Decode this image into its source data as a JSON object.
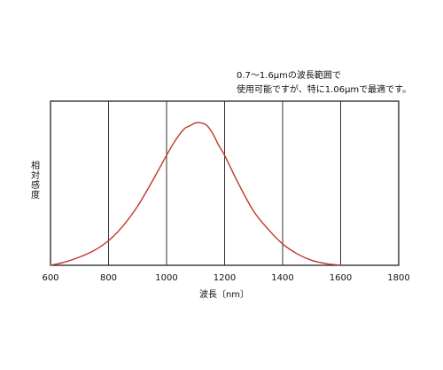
{
  "chart_data": {
    "type": "line",
    "title": "",
    "annotation": [
      "0.7〜1.6μmの波長範囲で",
      "使用可能ですが、特に1.06μmで最適です。"
    ],
    "xlabel": "波長〔nm〕",
    "ylabel": "相対感度",
    "xlim": [
      600,
      1800
    ],
    "ylim": [
      0,
      1
    ],
    "x_ticks": [
      600,
      800,
      1000,
      1200,
      1400,
      1600,
      1800
    ],
    "x_tick_labels": [
      "600",
      "800",
      "1000",
      "1200",
      "1400",
      "1600",
      "1800"
    ],
    "grid": "vertical",
    "series": [
      {
        "color": "#c0392b",
        "x": [
          600,
          650,
          700,
          750,
          800,
          850,
          900,
          950,
          1000,
          1030,
          1060,
          1080,
          1100,
          1120,
          1140,
          1160,
          1180,
          1200,
          1250,
          1300,
          1350,
          1400,
          1450,
          1500,
          1550,
          1580,
          1600
        ],
        "y": [
          0.0,
          0.02,
          0.05,
          0.09,
          0.15,
          0.24,
          0.36,
          0.51,
          0.67,
          0.76,
          0.83,
          0.85,
          0.867,
          0.867,
          0.85,
          0.8,
          0.73,
          0.67,
          0.49,
          0.33,
          0.22,
          0.13,
          0.07,
          0.03,
          0.01,
          0.004,
          0.0
        ]
      }
    ]
  }
}
